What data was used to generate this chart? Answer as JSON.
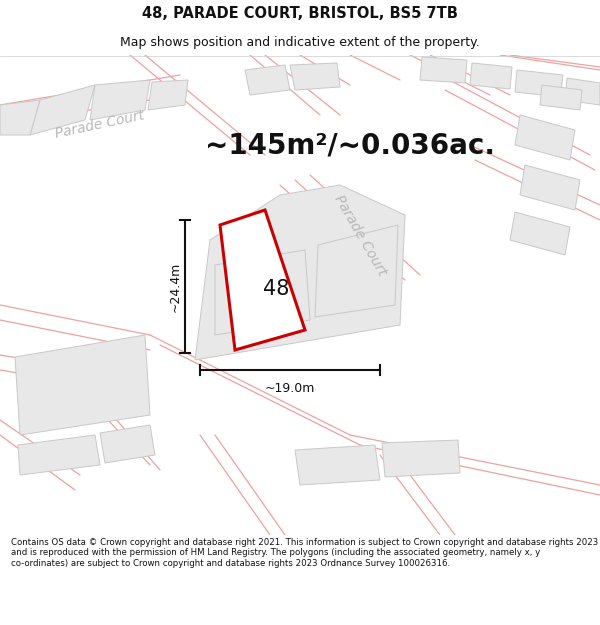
{
  "title": "48, PARADE COURT, BRISTOL, BS5 7TB",
  "subtitle": "Map shows position and indicative extent of the property.",
  "area_text": "~145m²/~0.036ac.",
  "label_48": "48",
  "dim_height": "~24.4m",
  "dim_width": "~19.0m",
  "footer": "Contains OS data © Crown copyright and database right 2021. This information is subject to Crown copyright and database rights 2023 and is reproduced with the permission of HM Land Registry. The polygons (including the associated geometry, namely x, y co-ordinates) are subject to Crown copyright and database rights 2023 Ordnance Survey 100026316.",
  "bg_color": "#ffffff",
  "map_bg": "#ffffff",
  "bldg_fill": "#e8e8e8",
  "bldg_edge": "#c8c8c8",
  "road_line": "#f0a0a0",
  "road_line2": "#f5b8b8",
  "plot_outline": "#cc0000",
  "dim_line_color": "#111111",
  "text_color": "#111111",
  "road_label_color": "#b8b8b8",
  "figsize": [
    6.0,
    6.25
  ],
  "dpi": 100,
  "title_fontsize": 10.5,
  "subtitle_fontsize": 9,
  "area_fontsize": 20,
  "label_fontsize": 15,
  "dim_fontsize": 9,
  "footer_fontsize": 6.2,
  "road_label_fontsize": 10
}
